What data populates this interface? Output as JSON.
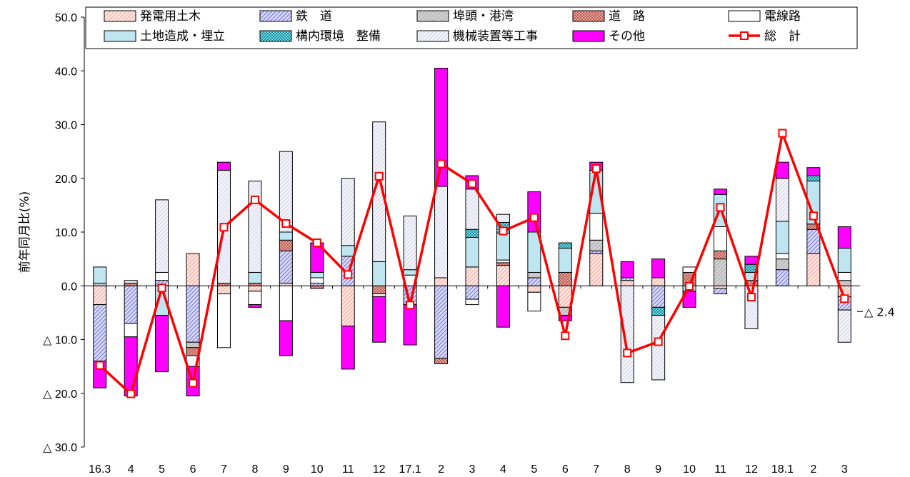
{
  "chart_data": {
    "type": "bar",
    "stacked": true,
    "ylabel": "前年同月比(%)",
    "ylim": [
      -30,
      50
    ],
    "yticks": [
      50,
      40,
      30,
      20,
      10,
      0,
      -10,
      -20,
      -30
    ],
    "ytick_labels": [
      "50.0",
      "40.0",
      "30.0",
      "20.0",
      "10.0",
      "0.0",
      "△ 10.0",
      "△ 20.0",
      "△ 30.0"
    ],
    "categories": [
      "16.3",
      "4",
      "5",
      "6",
      "7",
      "8",
      "9",
      "10",
      "11",
      "12",
      "17.1",
      "2",
      "3",
      "4",
      "5",
      "6",
      "7",
      "8",
      "9",
      "10",
      "11",
      "12",
      "18.1",
      "2",
      "3"
    ],
    "series": [
      {
        "name": "発電用土木",
        "color": "#f7b3a8",
        "values": [
          -3.5,
          0,
          0,
          6.0,
          -1.5,
          -1.0,
          0.5,
          0,
          -7.5,
          0,
          0,
          1.5,
          3.5,
          3.8,
          -1.2,
          -4.0,
          6.0,
          1.0,
          1.5,
          0,
          -0.5,
          0,
          0,
          6.0,
          -2.0
        ]
      },
      {
        "name": "鉄　道",
        "color": "#7c7ce0",
        "values": [
          -10.5,
          -7.0,
          1.0,
          -10.5,
          0,
          0,
          6.0,
          0.5,
          5.5,
          0,
          -3.5,
          -13.5,
          -2.5,
          0,
          1.5,
          0,
          0.5,
          0.5,
          -4.0,
          0,
          -1.0,
          0,
          3.0,
          4.5,
          -2.5
        ]
      },
      {
        "name": "埠頭・港湾",
        "color": "#c8c8c8",
        "values": [
          0.5,
          0,
          0,
          -1.0,
          0,
          0,
          0,
          0,
          0,
          0,
          0,
          0,
          0,
          0,
          1.0,
          -1.5,
          2.0,
          0,
          0,
          0,
          5.0,
          0,
          2.0,
          0,
          1.0
        ]
      },
      {
        "name": "道　路",
        "color": "#d48a8a",
        "values": [
          0,
          0.5,
          0,
          -1.5,
          0.5,
          0.5,
          2.0,
          -0.5,
          0,
          -1.5,
          0,
          -1.0,
          0,
          0.5,
          0,
          2.5,
          0,
          0,
          0,
          2.5,
          1.5,
          1.0,
          0,
          1.0,
          0
        ]
      },
      {
        "name": "電線路",
        "color": "#ffffff",
        "values": [
          0,
          -2.5,
          1.5,
          -2.0,
          -10.0,
          -2.5,
          -6.5,
          1.0,
          0,
          -0.5,
          2.0,
          0,
          -1.0,
          0.5,
          -3.5,
          0,
          5.0,
          0,
          0,
          1.0,
          4.5,
          0,
          1.0,
          0,
          1.5
        ]
      },
      {
        "name": "土地造成・埋立",
        "color": "#b8e4ee",
        "values": [
          3.0,
          0,
          -5.5,
          0,
          0,
          2.0,
          1.5,
          1.0,
          2.0,
          4.5,
          1.0,
          0,
          5.5,
          5.0,
          7.5,
          4.5,
          8.0,
          0,
          0,
          -1.0,
          6.0,
          1.5,
          6.0,
          8.0,
          4.5
        ]
      },
      {
        "name": "構内環境　整備",
        "color": "#34b6ca",
        "values": [
          0,
          0,
          0,
          0,
          0,
          0,
          0,
          0,
          0,
          0,
          0,
          0,
          1.5,
          2.0,
          0,
          1.0,
          0,
          0,
          -1.5,
          0,
          0,
          1.5,
          0,
          1.0,
          0
        ]
      },
      {
        "name": "機械装置等工事",
        "color": "#eeeef6",
        "values": [
          0,
          0.5,
          13.5,
          0,
          21.0,
          17.0,
          15.0,
          0,
          12.5,
          26.0,
          10.0,
          17.0,
          7.5,
          1.5,
          0,
          0,
          0,
          -18.0,
          -12.0,
          0,
          0,
          -8.0,
          8.0,
          0,
          -6.0
        ]
      },
      {
        "name": "その他",
        "color": "#ff00ff",
        "values": [
          -5.0,
          -11.0,
          -10.5,
          -5.5,
          1.5,
          -0.5,
          -6.5,
          5.5,
          -8.0,
          -8.5,
          -7.5,
          22.0,
          2.5,
          -7.7,
          7.5,
          -1.0,
          1.5,
          3.0,
          3.5,
          -3.0,
          1.0,
          1.5,
          3.0,
          1.5,
          4.0
        ]
      }
    ],
    "total": {
      "name": "総　計",
      "color": "#ff0000",
      "values": [
        -14.8,
        -20.1,
        -0.4,
        -18.1,
        10.9,
        16.0,
        11.6,
        8.0,
        2.1,
        20.4,
        -3.6,
        22.7,
        19.0,
        10.2,
        12.7,
        -9.3,
        21.8,
        -12.5,
        -10.4,
        -0.1,
        14.6,
        -2.1,
        28.4,
        13.0,
        -2.4
      ]
    },
    "end_label": "△ 2.4",
    "legend_position": "top"
  }
}
